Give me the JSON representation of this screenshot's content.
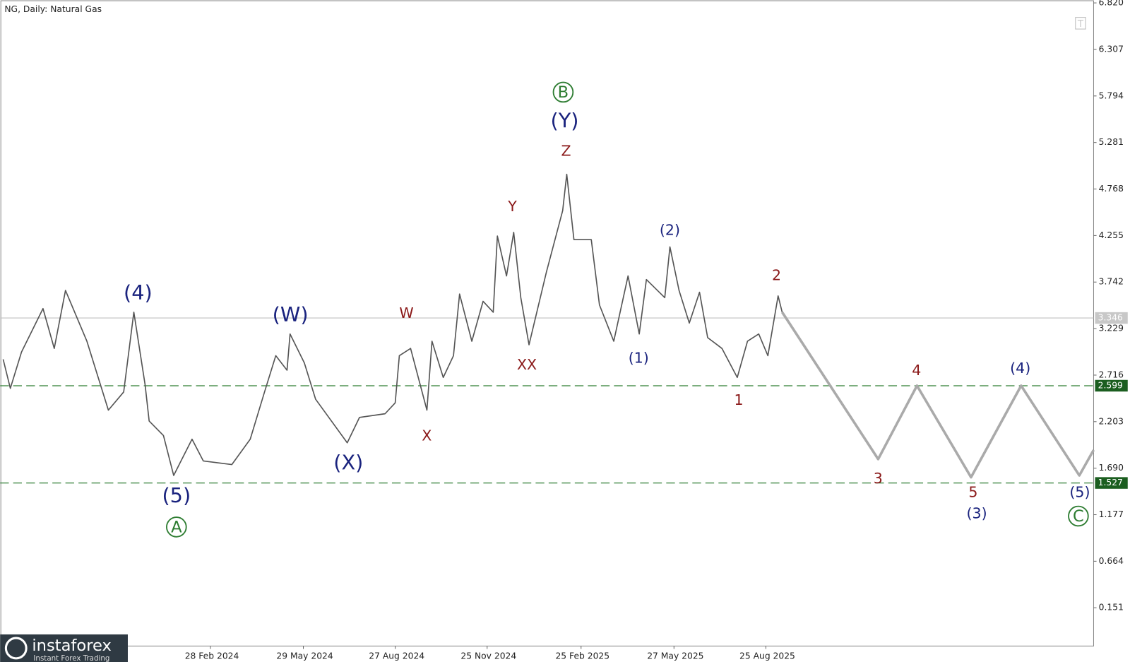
{
  "chart_data": {
    "type": "line",
    "title": "NG, Daily:  Natural Gas",
    "xlim": [
      "2023-08-06",
      "2026-07-12"
    ],
    "ylim": [
      -0.271,
      6.852
    ],
    "xticks": [
      {
        "value": "2024-02-28",
        "label": "28 Feb 2024"
      },
      {
        "value": "2024-05-29",
        "label": "29 May 2024"
      },
      {
        "value": "2024-08-27",
        "label": "27 Aug 2024"
      },
      {
        "value": "2024-11-25",
        "label": "25 Nov 2024"
      },
      {
        "value": "2025-02-25",
        "label": "25 Feb 2025"
      },
      {
        "value": "2025-05-27",
        "label": "27 May 2025"
      },
      {
        "value": "2025-08-25",
        "label": "25 Aug 2025"
      }
    ],
    "yticks": [
      {
        "value": 6.82,
        "label": "6.820"
      },
      6.307,
      5.794,
      5.281,
      4.768,
      4.255,
      3.742,
      3.229,
      2.716,
      2.203,
      {
        "value": 1.69,
        "label": "1.690"
      },
      1.177,
      0.664,
      0.151
    ],
    "current_price": 3.346,
    "levels": [
      2.599,
      1.527
    ],
    "level_color": "#2e7d32",
    "series": [
      {
        "color": "#555555",
        "x": [
          "2023-08-09",
          "2023-08-16",
          "2023-08-27",
          "2023-09-17",
          "2023-09-28",
          "2023-10-09",
          "2023-10-30",
          "2023-11-20",
          "2023-12-05",
          "2023-12-15",
          "2023-12-26",
          "2023-12-30",
          "2024-01-13",
          "2024-01-23",
          "2024-02-10",
          "2024-02-21",
          "2024-03-20",
          "2024-04-07",
          "2024-04-21",
          "2024-05-02",
          "2024-05-13",
          "2024-05-16",
          "2024-05-30",
          "2024-06-10",
          "2024-07-11",
          "2024-07-23",
          "2024-08-17",
          "2024-08-27",
          "2024-08-31",
          "2024-09-11",
          "2024-09-27",
          "2024-10-02",
          "2024-10-13",
          "2024-10-23",
          "2024-10-29",
          "2024-11-10",
          "2024-11-21",
          "2024-12-01",
          "2024-12-05",
          "2024-12-14",
          "2024-12-21",
          "2024-12-28",
          "2025-01-05",
          "2025-01-22",
          "2025-02-07",
          "2025-02-11",
          "2025-02-18",
          "2025-03-07",
          "2025-03-15",
          "2025-03-29",
          "2025-04-12",
          "2025-04-23",
          "2025-04-30",
          "2025-05-18",
          "2025-05-23",
          "2025-06-01",
          "2025-06-11",
          "2025-06-21",
          "2025-06-29",
          "2025-07-13",
          "2025-07-28",
          "2025-08-07",
          "2025-08-18",
          "2025-08-27",
          "2025-09-06",
          "2025-09-10"
        ],
        "values": [
          2.89,
          2.57,
          2.97,
          3.45,
          3.01,
          3.65,
          3.09,
          2.33,
          2.53,
          3.41,
          2.61,
          2.21,
          2.05,
          1.61,
          2.01,
          1.77,
          1.73,
          2.01,
          2.53,
          2.93,
          2.77,
          3.17,
          2.85,
          2.45,
          1.97,
          2.25,
          2.29,
          2.41,
          2.93,
          3.01,
          2.33,
          3.09,
          2.69,
          2.93,
          3.61,
          3.09,
          3.53,
          3.41,
          4.25,
          3.81,
          4.29,
          3.57,
          3.05,
          3.85,
          4.53,
          4.93,
          4.21,
          4.21,
          3.49,
          3.09,
          3.81,
          3.17,
          3.77,
          3.57,
          4.13,
          3.65,
          3.29,
          3.63,
          3.13,
          3.01,
          2.69,
          3.09,
          3.17,
          2.93,
          3.59,
          3.41
        ]
      },
      {
        "color": "#aaaaaa",
        "x": [
          "2025-09-10",
          "2025-12-13",
          "2026-01-20",
          "2026-03-14",
          "2026-05-02",
          "2026-06-28",
          "2026-07-12"
        ],
        "values": [
          3.41,
          1.79,
          2.6,
          1.59,
          2.6,
          1.61,
          1.89
        ]
      }
    ],
    "annotations": [
      {
        "text": "(4)",
        "color": "#1a237e"
      },
      {
        "text": "(5)",
        "color": "#1a237e"
      },
      {
        "text": "A",
        "color": "#2e7d32",
        "circled": true
      },
      {
        "text": "(W)",
        "color": "#1a237e"
      },
      {
        "text": "(X)",
        "color": "#1a237e"
      },
      {
        "text": "W",
        "color": "#8b1a1a"
      },
      {
        "text": "X",
        "color": "#8b1a1a"
      },
      {
        "text": "Y",
        "color": "#8b1a1a"
      },
      {
        "text": "XX",
        "color": "#8b1a1a"
      },
      {
        "text": "Z",
        "color": "#8b1a1a"
      },
      {
        "text": "(Y)",
        "color": "#1a237e"
      },
      {
        "text": "B",
        "color": "#2e7d32",
        "circled": true
      },
      {
        "text": "(1)",
        "color": "#1a237e"
      },
      {
        "text": "(2)",
        "color": "#1a237e"
      },
      {
        "text": "1",
        "color": "#8b1a1a"
      },
      {
        "text": "2",
        "color": "#8b1a1a"
      },
      {
        "text": "3",
        "color": "#8b1a1a"
      },
      {
        "text": "4",
        "color": "#8b1a1a"
      },
      {
        "text": "(4)",
        "color": "#1a237e"
      },
      {
        "text": "5",
        "color": "#8b1a1a"
      },
      {
        "text": "(3)",
        "color": "#1a237e"
      },
      {
        "text": "(5)",
        "color": "#1a237e"
      },
      {
        "text": "C",
        "color": "#2e7d32",
        "circled": true
      }
    ]
  },
  "logo": {
    "name": "instaforex",
    "tagline": "Instant Forex Trading"
  }
}
